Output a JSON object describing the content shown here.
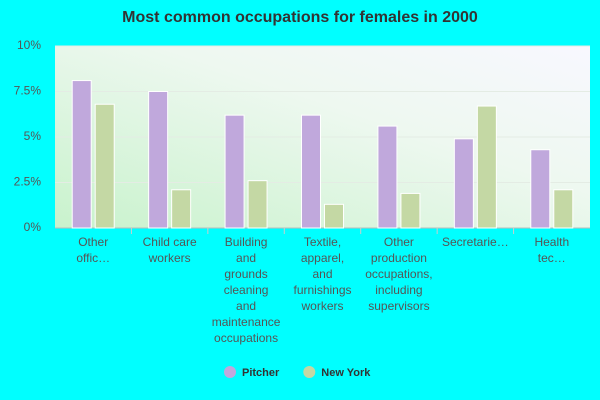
{
  "chart_data": {
    "type": "bar",
    "title": "Most common occupations for females in 2000",
    "categories": [
      "Other offic…",
      "Child care workers",
      "Building and grounds cleaning and maintenance occupations",
      "Textile, apparel, and furnishings workers",
      "Other production occupations, including supervisors",
      "Secretarie…",
      "Health tec…"
    ],
    "series": [
      {
        "name": "Pitcher",
        "color": "#c0a8dc",
        "values": [
          8.1,
          7.5,
          6.2,
          6.2,
          5.6,
          4.9,
          4.3
        ]
      },
      {
        "name": "New York",
        "color": "#c4d8a4",
        "values": [
          6.8,
          2.1,
          2.6,
          1.3,
          1.9,
          6.7,
          2.1
        ]
      }
    ],
    "ylim": [
      0,
      10
    ],
    "yticks": [
      {
        "value": 0,
        "label": "0%"
      },
      {
        "value": 2.5,
        "label": "2.5%"
      },
      {
        "value": 5,
        "label": "5%"
      },
      {
        "value": 7.5,
        "label": "7.5%"
      },
      {
        "value": 10,
        "label": "10%"
      }
    ],
    "grid": true
  }
}
